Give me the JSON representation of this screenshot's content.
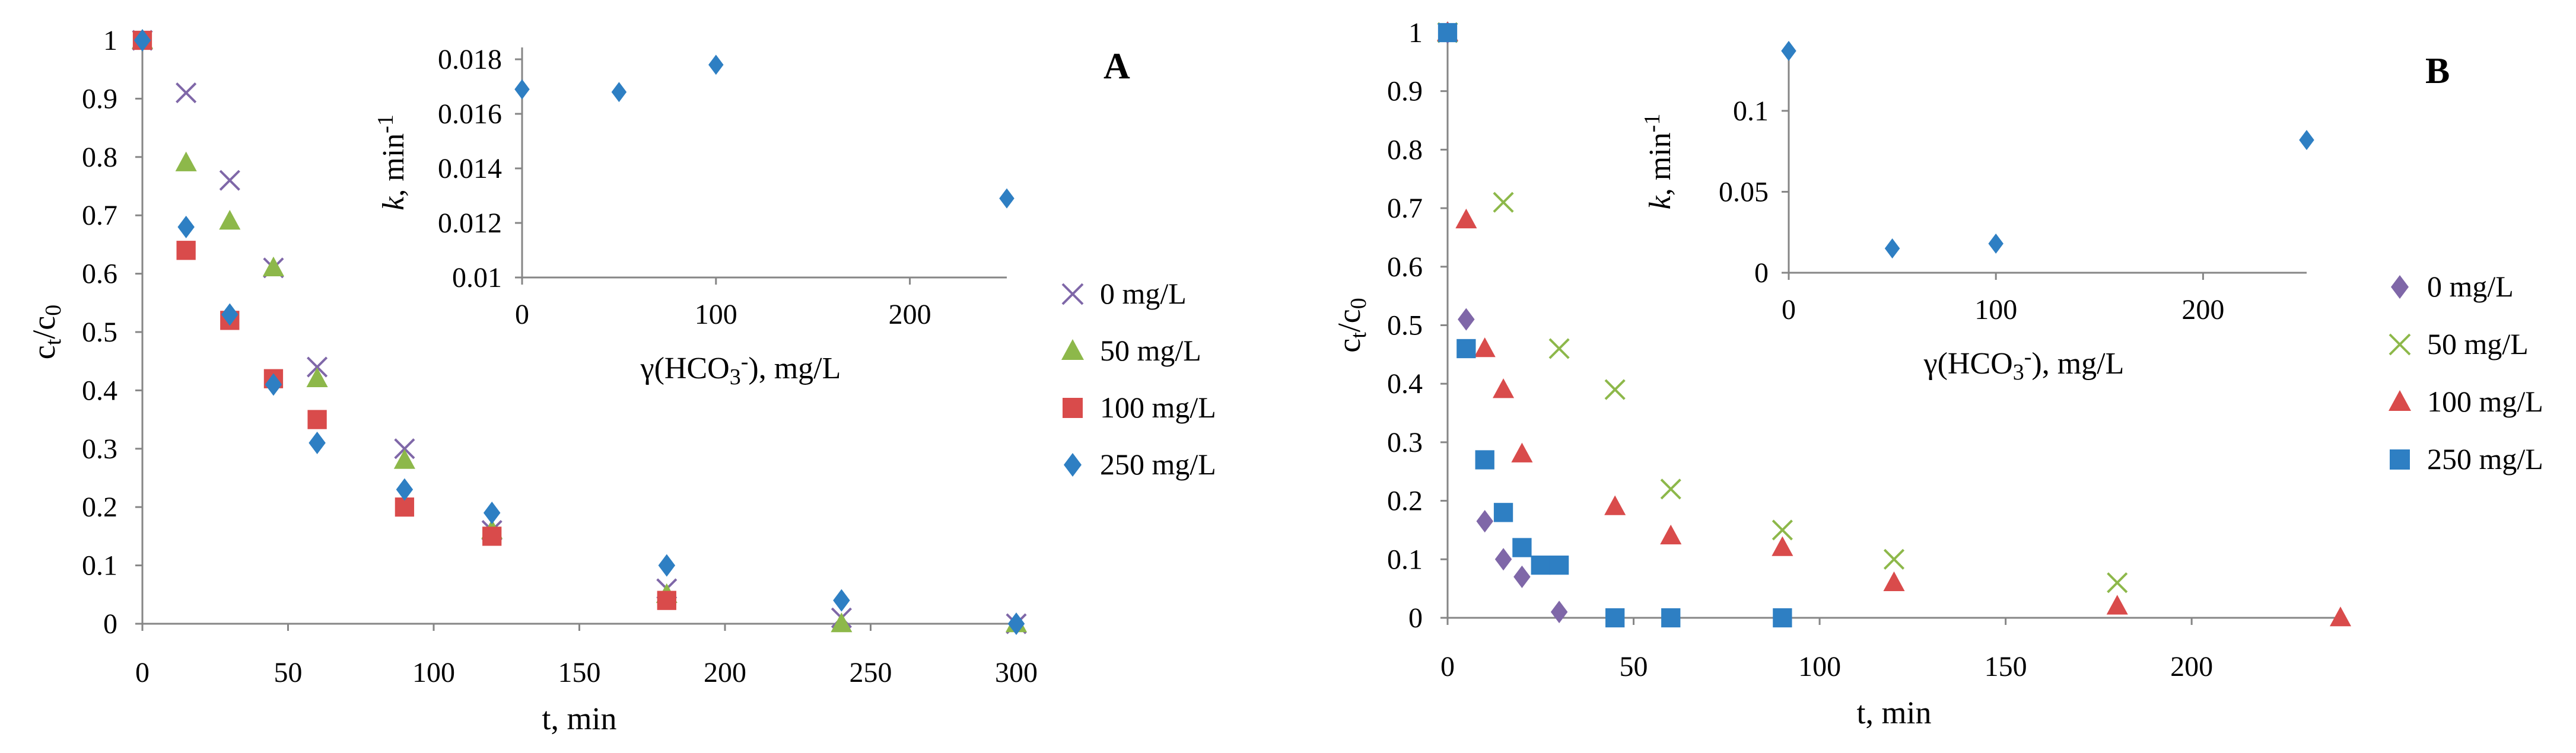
{
  "colors": {
    "0 mg/L": "#7f67a8",
    "50 mg/L": "#8db84a",
    "100 mg/L": "#d94b4b",
    "250 mg/L": "#2e7fc3"
  },
  "chart_data": [
    {
      "type": "scatter",
      "panel_label": "A",
      "xlabel": "t, min",
      "ylabel": "ct/c0",
      "xlim": [
        0,
        300
      ],
      "ylim": [
        0,
        1
      ],
      "x_ticks": [
        "0",
        "50",
        "100",
        "150",
        "200",
        "250",
        "300"
      ],
      "y_ticks": [
        "0",
        "0.1",
        "0.2",
        "0.3",
        "0.4",
        "0.5",
        "0.6",
        "0.7",
        "0.8",
        "0.9",
        "1"
      ],
      "legend_position": "right",
      "series": [
        {
          "name": "0 mg/L",
          "marker": "x",
          "x": [
            0,
            15,
            30,
            45,
            60,
            90,
            120,
            180,
            240,
            300
          ],
          "y": [
            1.0,
            0.91,
            0.76,
            0.61,
            0.44,
            0.3,
            0.16,
            0.06,
            0.01,
            0.0
          ]
        },
        {
          "name": "50 mg/L",
          "marker": "triangle",
          "x": [
            0,
            15,
            30,
            45,
            60,
            90,
            120,
            180,
            240,
            300
          ],
          "y": [
            1.0,
            0.79,
            0.69,
            0.61,
            0.42,
            0.28,
            0.16,
            0.05,
            0.0,
            0.0
          ]
        },
        {
          "name": "100 mg/L",
          "marker": "square",
          "x": [
            0,
            15,
            30,
            45,
            60,
            90,
            120,
            180
          ],
          "y": [
            1.0,
            0.64,
            0.52,
            0.42,
            0.35,
            0.2,
            0.15,
            0.04
          ]
        },
        {
          "name": "250 mg/L",
          "marker": "diamond",
          "x": [
            0,
            15,
            30,
            45,
            60,
            90,
            120,
            180,
            240,
            300
          ],
          "y": [
            1.0,
            0.68,
            0.53,
            0.41,
            0.31,
            0.23,
            0.19,
            0.1,
            0.04,
            0.0
          ]
        }
      ],
      "inset": {
        "type": "scatter",
        "xlabel": "γ(HCO3-), mg/L",
        "ylabel": "k, min-1",
        "xlim": [
          0,
          250
        ],
        "ylim": [
          0.01,
          0.018
        ],
        "x_ticks": [
          "0",
          "100",
          "200"
        ],
        "y_ticks": [
          "0.01",
          "0.012",
          "0.014",
          "0.016",
          "0.018"
        ],
        "marker": "diamond",
        "x": [
          0,
          50,
          100,
          250
        ],
        "y": [
          0.0169,
          0.0168,
          0.0178,
          0.0129
        ]
      }
    },
    {
      "type": "scatter",
      "panel_label": "B",
      "xlabel": "t, min",
      "ylabel": "ct/c0",
      "xlim": [
        0,
        240
      ],
      "ylim": [
        0,
        1
      ],
      "x_ticks": [
        "0",
        "50",
        "100",
        "150",
        "200"
      ],
      "y_ticks": [
        "0",
        "0.1",
        "0.2",
        "0.3",
        "0.4",
        "0.5",
        "0.6",
        "0.7",
        "0.8",
        "0.9",
        "1"
      ],
      "legend_position": "right",
      "series": [
        {
          "name": "0 mg/L",
          "marker": "diamond",
          "x": [
            0,
            5,
            10,
            15,
            20,
            30
          ],
          "y": [
            1.0,
            0.51,
            0.165,
            0.1,
            0.07,
            0.01
          ]
        },
        {
          "name": "50 mg/L",
          "marker": "x",
          "x": [
            0,
            15,
            30,
            45,
            60,
            90,
            120,
            180
          ],
          "y": [
            1.0,
            0.71,
            0.46,
            0.39,
            0.22,
            0.15,
            0.1,
            0.06
          ]
        },
        {
          "name": "100 mg/L",
          "marker": "triangle",
          "x": [
            0,
            5,
            10,
            15,
            20,
            45,
            60,
            90,
            120,
            180,
            240
          ],
          "y": [
            1.0,
            0.68,
            0.46,
            0.39,
            0.28,
            0.19,
            0.14,
            0.12,
            0.06,
            0.02,
            0.0
          ]
        },
        {
          "name": "250 mg/L",
          "marker": "square",
          "x": [
            0,
            5,
            10,
            15,
            20,
            25,
            30,
            45,
            60,
            90
          ],
          "y": [
            1.0,
            0.46,
            0.27,
            0.18,
            0.12,
            0.09,
            0.09,
            0.0,
            0.0,
            0.0
          ]
        }
      ],
      "inset": {
        "type": "scatter",
        "xlabel": "γ(HCO3-), mg/L",
        "ylabel": "k, min-1",
        "xlim": [
          0,
          250
        ],
        "ylim": [
          0,
          0.13
        ],
        "x_ticks": [
          "0",
          "100",
          "200"
        ],
        "y_ticks": [
          "0",
          "0.05",
          "0.1"
        ],
        "marker": "diamond",
        "x": [
          0,
          50,
          100,
          250
        ],
        "y": [
          0.137,
          0.015,
          0.018,
          0.082
        ]
      }
    }
  ]
}
